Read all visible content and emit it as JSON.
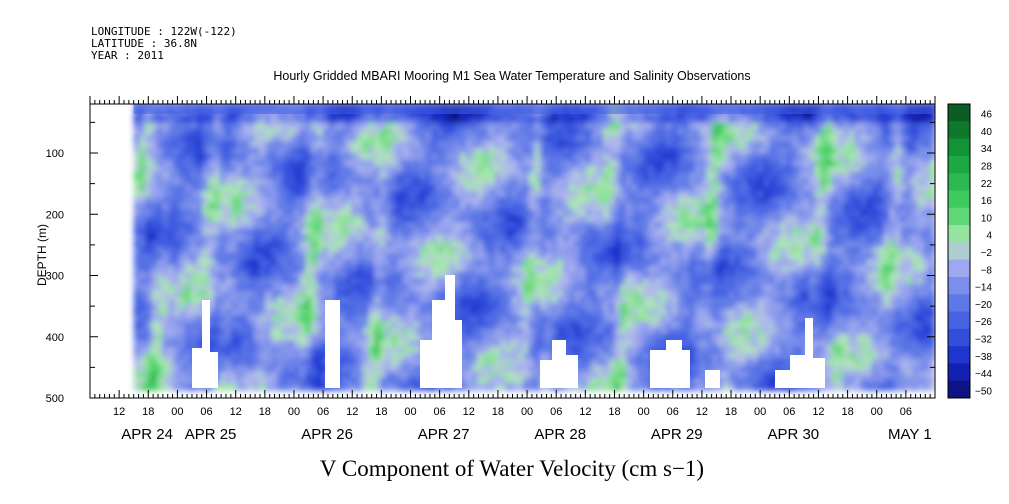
{
  "header": {
    "longitude": "LONGITUDE : 122W(-122)",
    "latitude": "LATITUDE : 36.8N",
    "year": "YEAR : 2011"
  },
  "chart_data": {
    "type": "heatmap",
    "title": "Hourly Gridded MBARI Mooring M1 Sea Water Temperature and Salinity Observations",
    "xlabel": "V Component of Water Velocity (cm s−1)",
    "ylabel": "DEPTH (m)",
    "ylim": [
      500,
      20
    ],
    "y_ticks": [
      100,
      200,
      300,
      400,
      500
    ],
    "x_range_hours": [
      "2011-04-24 06:00",
      "2011-05-01 12:00"
    ],
    "x_hour_ticks": [
      "12",
      "18",
      "00",
      "06",
      "12",
      "18",
      "00",
      "06",
      "12",
      "18",
      "00",
      "06",
      "12",
      "18",
      "00",
      "06",
      "12",
      "18",
      "00",
      "06",
      "12",
      "18",
      "00",
      "06",
      "12",
      "18",
      "00",
      "06"
    ],
    "x_day_labels": [
      "APR 24",
      "APR 25",
      "APR 26",
      "APR 27",
      "APR 28",
      "APR 29",
      "APR 30",
      "MAY  1"
    ],
    "data_start_hour": "2011-04-24 15:00",
    "colorbar": {
      "levels": [
        46,
        40,
        34,
        28,
        22,
        16,
        10,
        4,
        -2,
        -8,
        -14,
        -20,
        -26,
        -32,
        -38,
        -44,
        -50
      ],
      "min": -50,
      "max": 52,
      "positive_color": "#00a030",
      "negative_color": "#1f3fdc"
    }
  }
}
